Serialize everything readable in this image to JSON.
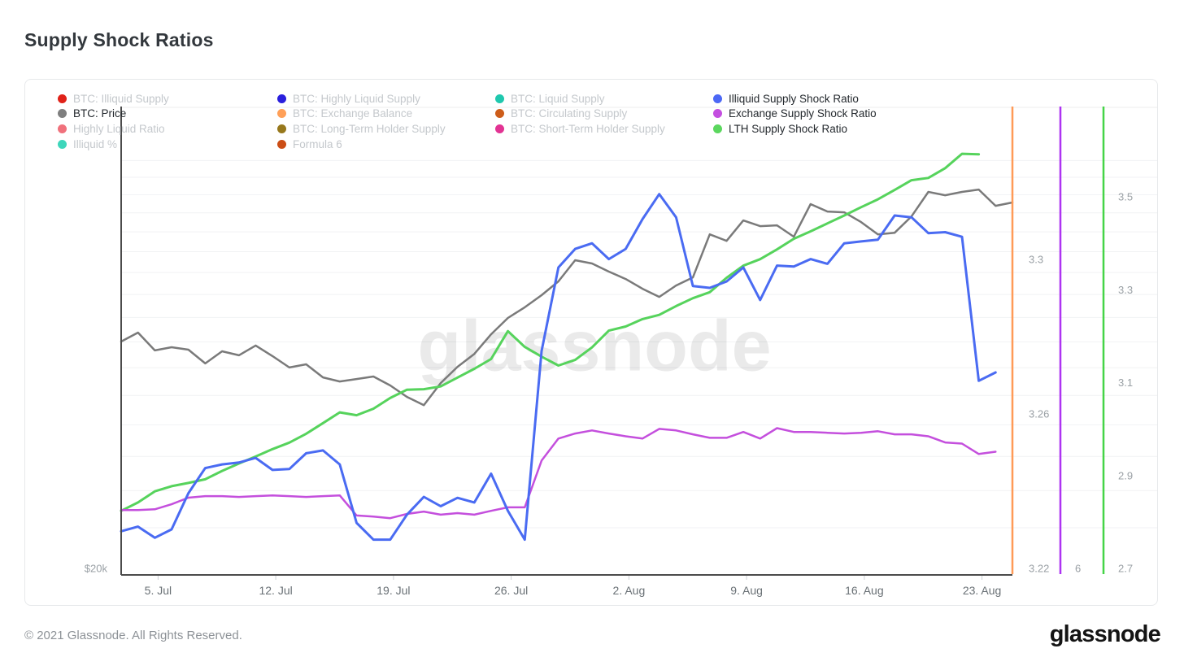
{
  "title": "Supply Shock Ratios",
  "watermark": "glassnode",
  "footer": {
    "copyright": "© 2021 Glassnode. All Rights Reserved.",
    "brand": "glassnode"
  },
  "legend": {
    "columns": [
      [
        {
          "label": "BTC: Illiquid Supply",
          "color": "#e02219",
          "active": false
        },
        {
          "label": "BTC: Price",
          "color": "#7f7f7f",
          "active": true
        },
        {
          "label": "Highly Liquid Ratio",
          "color": "#f0717c",
          "active": false
        },
        {
          "label": "Illiquid %",
          "color": "#3ed6bb",
          "active": false
        }
      ],
      [
        {
          "label": "BTC: Highly Liquid Supply",
          "color": "#2a1fdd",
          "active": false
        },
        {
          "label": "BTC: Exchange Balance",
          "color": "#ffa058",
          "active": false
        },
        {
          "label": "BTC: Long-Term Holder Supply",
          "color": "#97781c",
          "active": false
        },
        {
          "label": "Formula 6",
          "color": "#cb4e16",
          "active": false
        }
      ],
      [
        {
          "label": "BTC: Liquid Supply",
          "color": "#1fc8ae",
          "active": false
        },
        {
          "label": "BTC: Circulating Supply",
          "color": "#cd5d1a",
          "active": false
        },
        {
          "label": "BTC: Short-Term Holder Supply",
          "color": "#e23393",
          "active": false
        }
      ],
      [
        {
          "label": "Illiquid Supply Shock Ratio",
          "color": "#4c68f5",
          "active": true
        },
        {
          "label": "Exchange Supply Shock Ratio",
          "color": "#c44fe0",
          "active": true
        },
        {
          "label": "LTH Supply Shock Ratio",
          "color": "#5bd75e",
          "active": true
        }
      ]
    ]
  },
  "chart_data": {
    "type": "line",
    "x_description": "daily points, day 0 = leftmost; ticks are dates",
    "x_ticks": [
      {
        "d": 2,
        "label": "5. Jul"
      },
      {
        "d": 9,
        "label": "12. Jul"
      },
      {
        "d": 16,
        "label": "19. Jul"
      },
      {
        "d": 23,
        "label": "26. Jul"
      },
      {
        "d": 30,
        "label": "2. Aug"
      },
      {
        "d": 37,
        "label": "9. Aug"
      },
      {
        "d": 44,
        "label": "16. Aug"
      },
      {
        "d": 51,
        "label": "23. Aug"
      }
    ],
    "left_axis": {
      "series": "price",
      "color": "#4b4b4b",
      "scale": "log",
      "min": 20000,
      "max": 58900,
      "ticks": [
        {
          "v": 20000,
          "label": "$20k"
        }
      ],
      "grid_values": [
        22000,
        24000,
        26000,
        28000,
        30000,
        32000,
        34000,
        36000,
        38000,
        40000,
        42000,
        44000,
        46000,
        48000,
        50000,
        52000
      ]
    },
    "right_axes": [
      {
        "series": "exchange",
        "color": "#ff9a57",
        "scale": "linear",
        "min": 3.22,
        "max": 3.3393,
        "ticks": [
          {
            "v": 3.3,
            "label": "3.3"
          },
          {
            "v": 3.26,
            "label": "3.26"
          },
          {
            "v": 3.22,
            "label": "3.22"
          }
        ]
      },
      {
        "series": "illiquid",
        "color": "#ae33f2",
        "scale": "linear",
        "min": 6.0,
        "max": 6.4964,
        "ticks": [
          {
            "v": 6.0,
            "label": "6"
          }
        ]
      },
      {
        "series": "lth",
        "color": "#45d447",
        "scale": "linear",
        "min": 2.7,
        "max": 3.693,
        "ticks": [
          {
            "v": 3.5,
            "label": "3.5"
          },
          {
            "v": 3.3,
            "label": "3.3"
          },
          {
            "v": 3.1,
            "label": "3.1"
          },
          {
            "v": 2.9,
            "label": "2.9"
          },
          {
            "v": 2.7,
            "label": "2.7"
          }
        ]
      }
    ],
    "series": [
      {
        "id": "price",
        "name": "BTC: Price",
        "axis": "price",
        "color": "#7a7a7a",
        "width": 2.5,
        "values": [
          34030,
          34750,
          33330,
          33580,
          33390,
          32330,
          33260,
          32950,
          33710,
          32890,
          32020,
          32260,
          31290,
          30990,
          31170,
          31350,
          30700,
          29890,
          29320,
          30870,
          32070,
          33060,
          34610,
          35960,
          36870,
          37930,
          39180,
          41170,
          40860,
          40090,
          39400,
          38510,
          37780,
          38800,
          39550,
          43740,
          43080,
          45190,
          44590,
          44680,
          43500,
          46950,
          46150,
          46060,
          45020,
          43740,
          43910,
          45620,
          48310,
          47940,
          48310,
          48580,
          46770,
          47130
        ]
      },
      {
        "id": "lth",
        "name": "LTH Supply Shock Ratio",
        "axis": "lth",
        "color": "#56d35c",
        "width": 3,
        "values": [
          2.824,
          2.842,
          2.866,
          2.877,
          2.884,
          2.892,
          2.91,
          2.926,
          2.941,
          2.957,
          2.971,
          2.99,
          3.013,
          3.036,
          3.03,
          3.044,
          3.067,
          3.085,
          3.086,
          3.092,
          3.111,
          3.13,
          3.151,
          3.211,
          3.177,
          3.156,
          3.137,
          3.149,
          3.176,
          3.212,
          3.221,
          3.237,
          3.246,
          3.265,
          3.282,
          3.295,
          3.326,
          3.352,
          3.366,
          3.387,
          3.41,
          3.426,
          3.443,
          3.46,
          3.478,
          3.495,
          3.515,
          3.536,
          3.541,
          3.562,
          3.593,
          3.592
        ]
      },
      {
        "id": "exchange",
        "name": "Exchange Supply Shock Ratio",
        "axis": "exchange",
        "color": "#c44fdd",
        "width": 2.5,
        "values": [
          3.2351,
          3.2351,
          3.2353,
          3.2366,
          3.2383,
          3.2387,
          3.2387,
          3.2385,
          3.2387,
          3.2389,
          3.2387,
          3.2385,
          3.2387,
          3.2389,
          3.2337,
          3.2334,
          3.233,
          3.2341,
          3.2347,
          3.2339,
          3.2343,
          3.2339,
          3.2349,
          3.2358,
          3.2358,
          3.2479,
          3.2536,
          3.2549,
          3.2557,
          3.2549,
          3.2542,
          3.2536,
          3.2561,
          3.2557,
          3.2547,
          3.2538,
          3.2538,
          3.2553,
          3.2536,
          3.2563,
          3.2553,
          3.2553,
          3.2551,
          3.2549,
          3.2551,
          3.2555,
          3.2547,
          3.2547,
          3.2542,
          3.2526,
          3.2523,
          3.2496,
          3.2502
        ]
      },
      {
        "id": "illiquid",
        "name": "Illiquid Supply Shock Ratio",
        "axis": "illiquid",
        "color": "#4a6bf2",
        "width": 3,
        "values": [
          6.04,
          6.045,
          6.033,
          6.042,
          6.081,
          6.108,
          6.112,
          6.114,
          6.119,
          6.106,
          6.107,
          6.124,
          6.127,
          6.112,
          6.049,
          6.031,
          6.031,
          6.058,
          6.077,
          6.067,
          6.076,
          6.071,
          6.102,
          6.062,
          6.031,
          6.234,
          6.324,
          6.344,
          6.35,
          6.333,
          6.344,
          6.376,
          6.403,
          6.378,
          6.304,
          6.302,
          6.309,
          6.324,
          6.289,
          6.326,
          6.325,
          6.333,
          6.328,
          6.35,
          6.352,
          6.354,
          6.38,
          6.378,
          6.361,
          6.362,
          6.357,
          6.202,
          6.211
        ]
      }
    ]
  }
}
